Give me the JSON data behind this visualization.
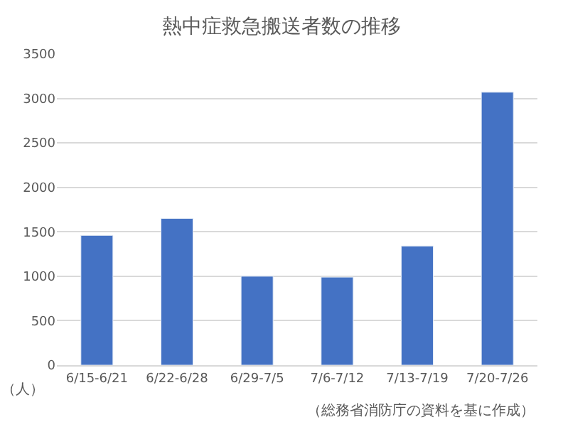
{
  "chart_data": {
    "type": "bar",
    "title": "熱中症救急搬送者数の推移",
    "ylabel": "（人）",
    "categories": [
      "6/15-6/21",
      "6/22-6/28",
      "6/29-7/5",
      "7/6-7/12",
      "7/13-7/19",
      "7/20-7/26"
    ],
    "values": [
      1460,
      1650,
      1000,
      990,
      1340,
      3070
    ],
    "color": "#4472c4",
    "ylim": [
      0,
      3500
    ],
    "yticks": [
      0,
      500,
      1000,
      1500,
      2000,
      2500,
      3000,
      3500
    ],
    "grid": "y",
    "annotations": [
      "（総務省消防庁の資料を基に作成）"
    ]
  }
}
